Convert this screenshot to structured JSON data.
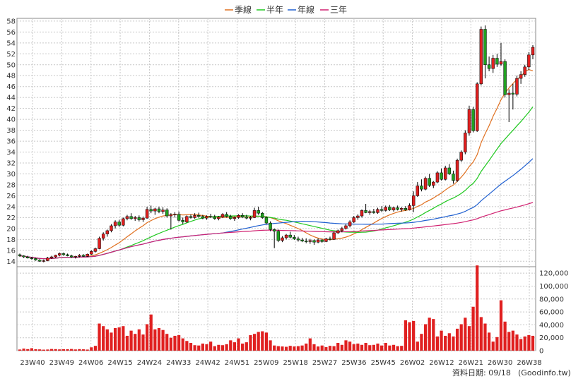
{
  "chart_data": {
    "type": "candlestick",
    "legend": [
      {
        "label": "季線",
        "color": "#e07020"
      },
      {
        "label": "半年",
        "color": "#20c820"
      },
      {
        "label": "年線",
        "color": "#2060d0"
      },
      {
        "label": "三年",
        "color": "#d02070"
      }
    ],
    "x_tick_labels": [
      "23W40",
      "23W49",
      "24W06",
      "24W15",
      "24W24",
      "24W33",
      "24W42",
      "24W51",
      "25W09",
      "25W18",
      "25W27",
      "25W36",
      "25W45",
      "26W02",
      "26W12",
      "26W21",
      "26W30",
      "26W38"
    ],
    "price_axis": {
      "min": 13,
      "max": 58.5,
      "ticks": [
        14,
        16,
        18,
        20,
        22,
        24,
        26,
        28,
        30,
        32,
        34,
        36,
        38,
        40,
        42,
        44,
        46,
        48,
        50,
        52,
        54,
        56,
        58
      ]
    },
    "volume_axis": {
      "min": 0,
      "max": 130000,
      "ticks": [
        0,
        20000,
        40000,
        60000,
        80000,
        100000,
        120000
      ],
      "tick_labels": [
        "0",
        "20,000",
        "40,000",
        "60,000",
        "80,000",
        "100,000",
        "120,000"
      ]
    },
    "colors": {
      "up": "#e02020",
      "down": "#20a020",
      "flat": "#000000",
      "volume": "#e02020",
      "grid": "#c8c8c8",
      "frame": "#888888"
    },
    "ohlc": [
      [
        15.2,
        15.4,
        14.8,
        15.0
      ],
      [
        15.0,
        15.1,
        14.6,
        14.8
      ],
      [
        14.8,
        15.0,
        14.5,
        14.6
      ],
      [
        14.6,
        14.8,
        14.3,
        14.5
      ],
      [
        14.5,
        14.6,
        14.1,
        14.2
      ],
      [
        14.2,
        14.4,
        13.9,
        14.0
      ],
      [
        14.0,
        14.3,
        13.8,
        14.1
      ],
      [
        14.1,
        14.8,
        14.0,
        14.6
      ],
      [
        14.6,
        15.0,
        14.4,
        14.8
      ],
      [
        14.8,
        15.2,
        14.6,
        15.1
      ],
      [
        15.1,
        15.6,
        14.9,
        15.4
      ],
      [
        15.4,
        15.6,
        15.0,
        15.2
      ],
      [
        15.2,
        15.4,
        14.9,
        15.0
      ],
      [
        15.0,
        15.2,
        14.6,
        14.8
      ],
      [
        14.8,
        15.0,
        14.5,
        14.9
      ],
      [
        14.9,
        15.3,
        14.7,
        15.1
      ],
      [
        15.1,
        15.3,
        14.8,
        14.9
      ],
      [
        14.9,
        15.4,
        14.8,
        15.3
      ],
      [
        15.3,
        16.0,
        15.2,
        15.8
      ],
      [
        15.8,
        16.5,
        15.6,
        16.3
      ],
      [
        16.3,
        18.5,
        16.2,
        18.2
      ],
      [
        18.2,
        19.3,
        17.8,
        19.0
      ],
      [
        19.0,
        19.8,
        18.5,
        19.6
      ],
      [
        19.6,
        20.8,
        19.3,
        20.5
      ],
      [
        20.5,
        21.5,
        20.0,
        21.2
      ],
      [
        21.2,
        21.6,
        20.3,
        20.6
      ],
      [
        20.6,
        22.0,
        20.4,
        21.8
      ],
      [
        21.8,
        22.5,
        21.5,
        22.2
      ],
      [
        22.2,
        22.8,
        21.6,
        21.8
      ],
      [
        21.8,
        22.3,
        21.4,
        22.0
      ],
      [
        22.0,
        22.4,
        21.3,
        21.6
      ],
      [
        21.6,
        22.2,
        21.2,
        21.9
      ],
      [
        21.9,
        24.0,
        21.8,
        23.5
      ],
      [
        23.5,
        24.2,
        22.8,
        23.2
      ],
      [
        23.2,
        23.8,
        22.5,
        23.6
      ],
      [
        23.6,
        24.0,
        22.8,
        23.1
      ],
      [
        23.1,
        23.9,
        22.7,
        23.4
      ],
      [
        23.4,
        23.7,
        22.0,
        22.3
      ],
      [
        22.3,
        22.8,
        19.8,
        22.5
      ],
      [
        22.5,
        23.0,
        22.0,
        22.6
      ],
      [
        22.6,
        23.1,
        21.3,
        21.5
      ],
      [
        21.5,
        22.0,
        20.8,
        21.2
      ],
      [
        21.2,
        22.4,
        21.0,
        22.2
      ],
      [
        22.2,
        22.6,
        21.8,
        22.0
      ],
      [
        22.0,
        22.8,
        21.8,
        22.4
      ],
      [
        22.4,
        22.9,
        22.0,
        22.2
      ],
      [
        22.2,
        22.5,
        21.7,
        21.9
      ],
      [
        21.9,
        22.4,
        21.6,
        22.2
      ],
      [
        22.2,
        22.7,
        21.9,
        22.1
      ],
      [
        22.1,
        22.5,
        21.6,
        21.8
      ],
      [
        21.8,
        22.3,
        21.5,
        22.1
      ],
      [
        22.1,
        22.8,
        21.9,
        22.6
      ],
      [
        22.6,
        23.0,
        22.0,
        22.2
      ],
      [
        22.2,
        22.5,
        21.6,
        21.8
      ],
      [
        21.8,
        22.2,
        21.4,
        22.0
      ],
      [
        22.0,
        22.6,
        21.8,
        22.4
      ],
      [
        22.4,
        22.8,
        21.9,
        22.1
      ],
      [
        22.1,
        22.5,
        21.7,
        21.9
      ],
      [
        21.9,
        22.3,
        21.5,
        22.0
      ],
      [
        22.0,
        23.8,
        21.9,
        23.3
      ],
      [
        23.3,
        24.0,
        22.5,
        22.8
      ],
      [
        22.8,
        23.0,
        21.8,
        22.0
      ],
      [
        22.0,
        22.2,
        20.8,
        21.0
      ],
      [
        21.0,
        21.3,
        19.5,
        19.8
      ],
      [
        19.8,
        20.0,
        16.4,
        19.5
      ],
      [
        19.5,
        19.8,
        17.5,
        17.8
      ],
      [
        17.8,
        18.6,
        17.5,
        18.3
      ],
      [
        18.3,
        19.0,
        18.0,
        18.8
      ],
      [
        18.8,
        19.4,
        18.2,
        18.4
      ],
      [
        18.4,
        18.8,
        17.9,
        18.1
      ],
      [
        18.1,
        18.5,
        17.6,
        17.9
      ],
      [
        17.9,
        18.3,
        17.5,
        17.7
      ],
      [
        17.7,
        18.2,
        17.3,
        17.6
      ],
      [
        17.6,
        18.1,
        17.2,
        17.8
      ],
      [
        17.8,
        18.0,
        17.0,
        17.5
      ],
      [
        17.5,
        18.2,
        17.3,
        17.9
      ],
      [
        17.9,
        18.1,
        17.4,
        17.6
      ],
      [
        17.6,
        18.3,
        17.5,
        18.1
      ],
      [
        18.1,
        18.5,
        17.8,
        18.0
      ],
      [
        18.0,
        19.4,
        17.9,
        19.2
      ],
      [
        19.2,
        19.8,
        19.0,
        19.6
      ],
      [
        19.6,
        20.3,
        19.3,
        20.0
      ],
      [
        20.0,
        20.8,
        19.8,
        20.5
      ],
      [
        20.5,
        21.5,
        20.2,
        21.2
      ],
      [
        21.2,
        22.3,
        21.0,
        22.0
      ],
      [
        22.0,
        22.6,
        21.6,
        22.3
      ],
      [
        22.3,
        23.5,
        22.0,
        23.3
      ],
      [
        23.3,
        24.5,
        22.8,
        22.9
      ],
      [
        22.9,
        23.4,
        22.5,
        23.1
      ],
      [
        23.1,
        23.6,
        22.7,
        22.9
      ],
      [
        22.9,
        23.8,
        22.7,
        23.5
      ],
      [
        23.5,
        24.1,
        23.0,
        23.3
      ],
      [
        23.3,
        24.2,
        23.1,
        23.9
      ],
      [
        23.9,
        24.3,
        23.2,
        23.4
      ],
      [
        23.4,
        24.0,
        23.1,
        23.8
      ],
      [
        23.8,
        24.2,
        23.3,
        23.5
      ],
      [
        23.5,
        23.9,
        23.1,
        23.7
      ],
      [
        23.7,
        24.1,
        23.2,
        23.4
      ],
      [
        23.4,
        24.6,
        23.3,
        24.2
      ],
      [
        24.2,
        26.8,
        23.0,
        26.0
      ],
      [
        26.0,
        28.5,
        25.8,
        27.8
      ],
      [
        27.8,
        29.0,
        26.8,
        27.2
      ],
      [
        27.2,
        29.5,
        27.0,
        29.2
      ],
      [
        29.2,
        30.0,
        27.6,
        27.9
      ],
      [
        27.9,
        28.7,
        27.4,
        28.5
      ],
      [
        28.5,
        30.5,
        28.3,
        30.2
      ],
      [
        30.2,
        31.0,
        28.8,
        29.0
      ],
      [
        29.0,
        31.5,
        28.8,
        31.1
      ],
      [
        31.1,
        31.8,
        29.8,
        30.0
      ],
      [
        30.0,
        30.6,
        28.2,
        28.8
      ],
      [
        28.8,
        32.8,
        28.5,
        32.5
      ],
      [
        32.5,
        34.3,
        32.2,
        34.0
      ],
      [
        34.0,
        38.0,
        33.6,
        37.5
      ],
      [
        37.5,
        42.5,
        37.0,
        41.8
      ],
      [
        41.8,
        42.3,
        37.6,
        37.9
      ],
      [
        37.9,
        46.8,
        37.7,
        46.5
      ],
      [
        46.5,
        57.0,
        46.2,
        56.5
      ],
      [
        56.5,
        57.2,
        47.5,
        50.0
      ],
      [
        50.0,
        51.5,
        48.8,
        49.3
      ],
      [
        49.3,
        51.8,
        48.5,
        51.2
      ],
      [
        51.2,
        52.0,
        49.6,
        50.1
      ],
      [
        50.1,
        54.0,
        49.8,
        50.6
      ],
      [
        50.6,
        51.0,
        44.0,
        44.5
      ],
      [
        44.5,
        45.5,
        39.5,
        44.8
      ],
      [
        44.8,
        46.5,
        41.8,
        44.6
      ],
      [
        44.6,
        48.0,
        44.2,
        47.5
      ],
      [
        47.5,
        48.8,
        46.5,
        48.2
      ],
      [
        48.2,
        50.0,
        47.8,
        49.6
      ],
      [
        49.6,
        52.3,
        49.0,
        51.8
      ],
      [
        51.8,
        53.6,
        51.0,
        53.2
      ]
    ],
    "volume": [
      1800,
      3200,
      2400,
      3800,
      2200,
      2000,
      1600,
      1800,
      2600,
      2400,
      2000,
      2300,
      2200,
      2600,
      1900,
      2400,
      2100,
      1700,
      5200,
      7500,
      42000,
      38000,
      33000,
      28000,
      35000,
      36000,
      38000,
      23000,
      31000,
      26000,
      33000,
      25000,
      41000,
      56000,
      33000,
      35000,
      32000,
      26000,
      20000,
      23000,
      24000,
      19000,
      15000,
      12000,
      8500,
      8000,
      11000,
      10000,
      14000,
      7000,
      9000,
      8500,
      10000,
      16000,
      13000,
      19000,
      11000,
      13000,
      24000,
      26000,
      29000,
      30000,
      28000,
      16000,
      8000,
      7000,
      6500,
      6000,
      7500,
      6500,
      7000,
      8000,
      11000,
      19000,
      10000,
      6500,
      8000,
      5500,
      7500,
      7000,
      12000,
      9000,
      16000,
      14000,
      10000,
      11000,
      9000,
      12000,
      8500,
      9000,
      11000,
      8000,
      12000,
      8000,
      9000,
      7000,
      7500,
      47000,
      44000,
      46000,
      14000,
      26000,
      41000,
      51000,
      49000,
      22000,
      31000,
      23000,
      27000,
      22000,
      34000,
      41000,
      51000,
      38000,
      68000,
      132000,
      52000,
      42000,
      28000,
      14000,
      21000,
      78000,
      45000,
      29000,
      31000,
      25000,
      18000,
      22000,
      24000,
      23000
    ]
  },
  "footer": {
    "label": "資料日期: 09/18",
    "source": "(Goodinfo.tw)"
  }
}
